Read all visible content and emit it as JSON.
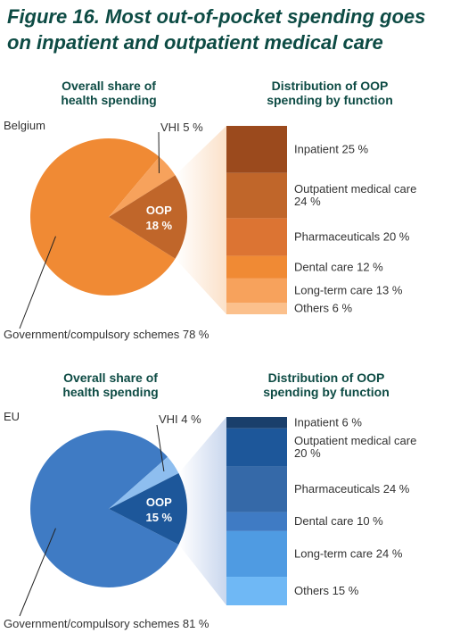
{
  "figure_title": "Figure 16. Most out-of-pocket spending goes on inpatient and outpatient medical care",
  "colors": {
    "title": "#0d4b44",
    "belgium_gov": "#f08a34",
    "belgium_vhi": "#f7a25c",
    "belgium_oop": "#c0662a",
    "belgium_fan": "#fbe1c9",
    "eu_gov": "#3f7bc4",
    "eu_vhi": "#8ebeef",
    "eu_oop": "#1d579a",
    "eu_fan": "#c9d7ee"
  },
  "chart_data": [
    {
      "type": "pie",
      "panel": "belgium",
      "region_label": "Belgium",
      "title": "Overall share of health spending",
      "slices": [
        {
          "label": "Government/compulsory schemes 78 %",
          "value": 78,
          "color": "#f08a34"
        },
        {
          "label": "VHI 5 %",
          "value": 5,
          "color": "#f7a25c"
        },
        {
          "label": "OOP",
          "sublabel": "18 %",
          "value": 18,
          "color": "#c0662a"
        }
      ]
    },
    {
      "type": "bar",
      "stacked": true,
      "panel": "belgium",
      "title": "Distribution of OOP spending by function",
      "segments": [
        {
          "label": "Inpatient 25 %",
          "value": 25,
          "color": "#9b4a1d"
        },
        {
          "label": "Outpatient medical care 24 %",
          "value": 24,
          "color": "#c0662a"
        },
        {
          "label": "Pharmaceuticals 20 %",
          "value": 20,
          "color": "#dc7433"
        },
        {
          "label": "Dental care 12 %",
          "value": 12,
          "color": "#f08a34"
        },
        {
          "label": "Long-term care 13 %",
          "value": 13,
          "color": "#f7a25c"
        },
        {
          "label": "Others 6 %",
          "value": 6,
          "color": "#fbc08c"
        }
      ]
    },
    {
      "type": "pie",
      "panel": "eu",
      "region_label": "EU",
      "title": "Overall share of health spending",
      "slices": [
        {
          "label": "Government/compulsory schemes 81 %",
          "value": 81,
          "color": "#3f7bc4"
        },
        {
          "label": "VHI 4 %",
          "value": 4,
          "color": "#8ebeef"
        },
        {
          "label": "OOP",
          "sublabel": "15 %",
          "value": 15,
          "color": "#1d579a"
        }
      ]
    },
    {
      "type": "bar",
      "stacked": true,
      "panel": "eu",
      "title": "Distribution of OOP spending by function",
      "segments": [
        {
          "label": "Inpatient 6 %",
          "value": 6,
          "color": "#1a3f6b"
        },
        {
          "label": "Outpatient medical care 20 %",
          "value": 20,
          "color": "#1d579a"
        },
        {
          "label": "Pharmaceuticals 24 %",
          "value": 24,
          "color": "#3569a8"
        },
        {
          "label": "Dental care 10 %",
          "value": 10,
          "color": "#3f7bc4"
        },
        {
          "label": "Long-term care 24 %",
          "value": 24,
          "color": "#4f9be2"
        },
        {
          "label": "Others 15 %",
          "value": 15,
          "color": "#6fb8f5"
        }
      ]
    }
  ]
}
